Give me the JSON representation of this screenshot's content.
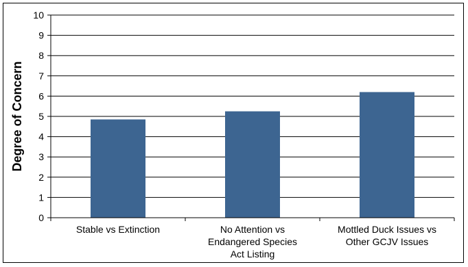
{
  "chart_data": {
    "type": "bar",
    "categories": [
      [
        "Stable vs Extinction"
      ],
      [
        "No Attention vs",
        "Endangered Species",
        "Act Listing"
      ],
      [
        "Mottled Duck Issues vs",
        "Other GCJV Issues"
      ]
    ],
    "values": [
      4.85,
      5.25,
      6.2
    ],
    "title": "",
    "xlabel": "",
    "ylabel": "Degree of Concern",
    "ylim": [
      0,
      10
    ],
    "yticks": [
      0,
      1,
      2,
      3,
      4,
      5,
      6,
      7,
      8,
      9,
      10
    ],
    "grid": true,
    "legend": "none",
    "bar_color": "#3d6591"
  }
}
